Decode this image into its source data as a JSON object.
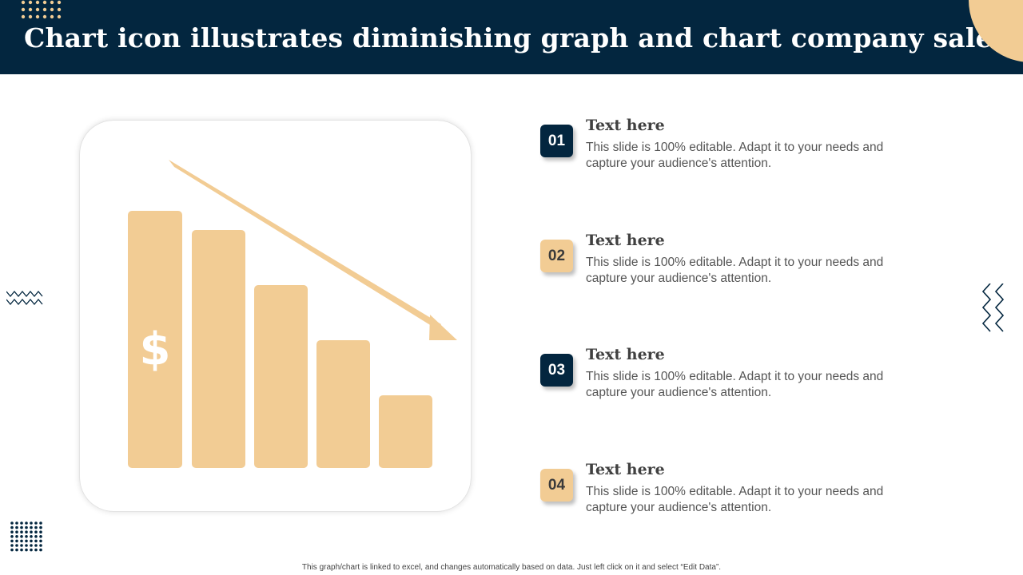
{
  "header": {
    "title": "Chart icon illustrates diminishing graph and chart company sales"
  },
  "colors": {
    "navy": "#03263f",
    "beige": "#f2cc94",
    "text_dark": "#404040",
    "text_body": "#555555"
  },
  "icon": {
    "name": "diminishing-sales-chart-icon",
    "symbol": "$"
  },
  "items": [
    {
      "number": "01",
      "title": "Text here",
      "description": "This slide is 100% editable. Adapt it to your needs and capture your audience's attention."
    },
    {
      "number": "02",
      "title": "Text here",
      "description": "This slide is 100% editable. Adapt it to your needs and capture your audience's attention."
    },
    {
      "number": "03",
      "title": "Text here",
      "description": "This slide is 100% editable. Adapt it to your needs and capture your audience's attention."
    },
    {
      "number": "04",
      "title": "Text here",
      "description": "This slide is 100% editable. Adapt it to your needs and capture your audience's attention."
    }
  ],
  "footer": {
    "note": "This graph/chart is linked to excel, and changes automatically based on data. Just left click on it and select “Edit Data”."
  }
}
